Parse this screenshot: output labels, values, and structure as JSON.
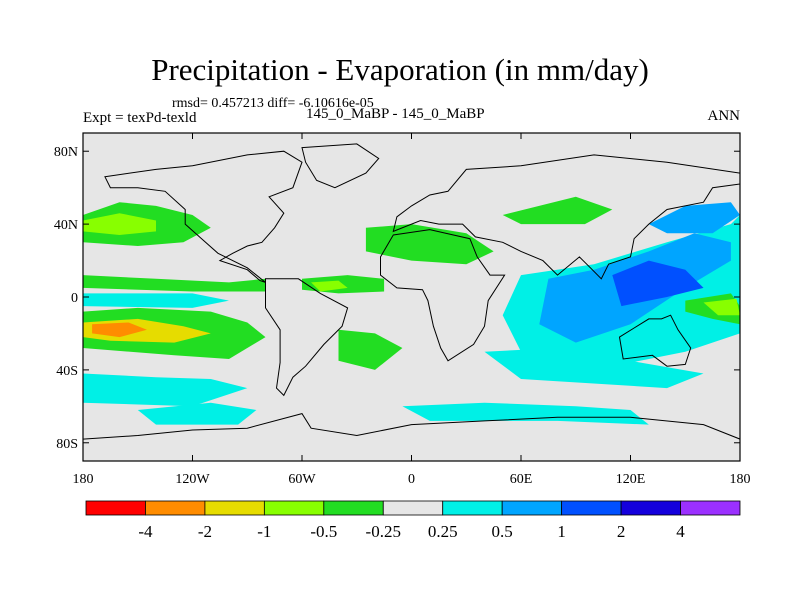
{
  "figure": {
    "title": "Precipitation - Evaporation (in mm/day)",
    "stats": "rmsd= 0.457213 diff= -6.10616e-05",
    "left_label": "Expt = texPd-texld",
    "center_label": "145_0_MaBP - 145_0_MaBP",
    "right_label": "ANN"
  },
  "chart_data": {
    "type": "heatmap",
    "projection": "cylindrical-equidistant",
    "title": "Precipitation - Evaporation (in mm/day)",
    "lon_range": [
      -180,
      180
    ],
    "lat_range": [
      -90,
      90
    ],
    "x_ticks": [
      {
        "value": -180,
        "label": "180"
      },
      {
        "value": -120,
        "label": "120W"
      },
      {
        "value": -60,
        "label": "60W"
      },
      {
        "value": 0,
        "label": "0"
      },
      {
        "value": 60,
        "label": "60E"
      },
      {
        "value": 120,
        "label": "120E"
      },
      {
        "value": 180,
        "label": "180"
      }
    ],
    "y_ticks": [
      {
        "value": 80,
        "label": "80N"
      },
      {
        "value": 40,
        "label": "40N"
      },
      {
        "value": 0,
        "label": "0"
      },
      {
        "value": -40,
        "label": "40S"
      },
      {
        "value": -80,
        "label": "80S"
      }
    ],
    "colorbar": {
      "colors": [
        "#ff0000",
        "#ff8c00",
        "#e6dc00",
        "#88ff00",
        "#22dd22",
        "#e6e6e6",
        "#00f0e6",
        "#00a5ff",
        "#0050ff",
        "#1400dc",
        "#9b30ff"
      ],
      "labels": [
        "-4",
        "-2",
        "-1",
        "-0.5",
        "-0.25",
        "0.25",
        "0.5",
        "1",
        "2",
        "4"
      ]
    },
    "map_colors": {
      "background": "#e6e6e6",
      "outline": "#000000"
    },
    "regions": [
      {
        "label": "north pacific band",
        "cls": 4,
        "lonlat": [
          [
            -180,
            45
          ],
          [
            -160,
            52
          ],
          [
            -140,
            50
          ],
          [
            -120,
            45
          ],
          [
            -110,
            38
          ],
          [
            -125,
            30
          ],
          [
            -150,
            28
          ],
          [
            -180,
            30
          ]
        ]
      },
      {
        "label": "north pacific core",
        "cls": 3,
        "lonlat": [
          [
            -180,
            42
          ],
          [
            -160,
            46
          ],
          [
            -140,
            42
          ],
          [
            -140,
            36
          ],
          [
            -160,
            34
          ],
          [
            -180,
            36
          ]
        ]
      },
      {
        "label": "itcz pacific",
        "cls": 4,
        "lonlat": [
          [
            -180,
            12
          ],
          [
            -140,
            10
          ],
          [
            -100,
            8
          ],
          [
            -80,
            10
          ],
          [
            -80,
            3
          ],
          [
            -120,
            3
          ],
          [
            -180,
            5
          ]
        ]
      },
      {
        "label": "equatorial pacific dry",
        "cls": 6,
        "lonlat": [
          [
            -180,
            2
          ],
          [
            -120,
            2
          ],
          [
            -100,
            -2
          ],
          [
            -120,
            -6
          ],
          [
            -180,
            -5
          ]
        ]
      },
      {
        "label": "south pacific band",
        "cls": 4,
        "lonlat": [
          [
            -180,
            -8
          ],
          [
            -150,
            -6
          ],
          [
            -110,
            -8
          ],
          [
            -90,
            -14
          ],
          [
            -80,
            -22
          ],
          [
            -100,
            -34
          ],
          [
            -130,
            -32
          ],
          [
            -180,
            -28
          ]
        ]
      },
      {
        "label": "south pacific yellow",
        "cls": 2,
        "lonlat": [
          [
            -180,
            -14
          ],
          [
            -150,
            -12
          ],
          [
            -125,
            -16
          ],
          [
            -110,
            -20
          ],
          [
            -130,
            -25
          ],
          [
            -165,
            -24
          ],
          [
            -180,
            -22
          ]
        ]
      },
      {
        "label": "south pacific orange",
        "cls": 1,
        "lonlat": [
          [
            -175,
            -15
          ],
          [
            -155,
            -14
          ],
          [
            -145,
            -18
          ],
          [
            -160,
            -22
          ],
          [
            -175,
            -20
          ]
        ]
      },
      {
        "label": "south pacific wet",
        "cls": 6,
        "lonlat": [
          [
            -180,
            -42
          ],
          [
            -140,
            -44
          ],
          [
            -110,
            -45
          ],
          [
            -90,
            -50
          ],
          [
            -120,
            -60
          ],
          [
            -180,
            -58
          ]
        ]
      },
      {
        "label": "southern ocean wet",
        "cls": 6,
        "lonlat": [
          [
            -150,
            -62
          ],
          [
            -110,
            -58
          ],
          [
            -85,
            -62
          ],
          [
            -95,
            -70
          ],
          [
            -140,
            -70
          ]
        ]
      },
      {
        "label": "southern ocean wet east",
        "cls": 6,
        "lonlat": [
          [
            -5,
            -60
          ],
          [
            40,
            -58
          ],
          [
            90,
            -60
          ],
          [
            120,
            -62
          ],
          [
            130,
            -70
          ],
          [
            80,
            -68
          ],
          [
            10,
            -68
          ]
        ]
      },
      {
        "label": "south atlantic dry",
        "cls": 4,
        "lonlat": [
          [
            -40,
            -18
          ],
          [
            -20,
            -20
          ],
          [
            -5,
            -28
          ],
          [
            -20,
            -40
          ],
          [
            -40,
            -35
          ]
        ]
      },
      {
        "label": "atlantic itcz",
        "cls": 4,
        "lonlat": [
          [
            -60,
            10
          ],
          [
            -35,
            12
          ],
          [
            -15,
            10
          ],
          [
            -15,
            3
          ],
          [
            -40,
            2
          ],
          [
            -60,
            4
          ]
        ]
      },
      {
        "label": "atlantic yellow",
        "cls": 3,
        "lonlat": [
          [
            -55,
            8
          ],
          [
            -40,
            9
          ],
          [
            -35,
            5
          ],
          [
            -50,
            3
          ]
        ]
      },
      {
        "label": "africa dry",
        "cls": 4,
        "lonlat": [
          [
            -25,
            38
          ],
          [
            0,
            40
          ],
          [
            30,
            35
          ],
          [
            45,
            25
          ],
          [
            30,
            18
          ],
          [
            0,
            20
          ],
          [
            -25,
            25
          ]
        ]
      },
      {
        "label": "asia dry",
        "cls": 4,
        "lonlat": [
          [
            50,
            45
          ],
          [
            90,
            55
          ],
          [
            110,
            48
          ],
          [
            95,
            40
          ],
          [
            60,
            40
          ]
        ]
      },
      {
        "label": "indian ocean wet",
        "cls": 6,
        "lonlat": [
          [
            60,
            12
          ],
          [
            100,
            18
          ],
          [
            140,
            30
          ],
          [
            175,
            40
          ],
          [
            180,
            45
          ],
          [
            180,
            -20
          ],
          [
            150,
            -30
          ],
          [
            100,
            -40
          ],
          [
            60,
            -30
          ],
          [
            50,
            -10
          ]
        ]
      },
      {
        "label": "indo-pacific blue",
        "cls": 7,
        "lonlat": [
          [
            75,
            10
          ],
          [
            100,
            15
          ],
          [
            130,
            25
          ],
          [
            155,
            35
          ],
          [
            175,
            30
          ],
          [
            175,
            20
          ],
          [
            150,
            5
          ],
          [
            120,
            -15
          ],
          [
            90,
            -25
          ],
          [
            70,
            -15
          ]
        ]
      },
      {
        "label": "west pacific core",
        "cls": 8,
        "lonlat": [
          [
            110,
            12
          ],
          [
            130,
            20
          ],
          [
            150,
            15
          ],
          [
            160,
            5
          ],
          [
            140,
            0
          ],
          [
            115,
            -5
          ]
        ]
      },
      {
        "label": "north west pacific",
        "cls": 7,
        "lonlat": [
          [
            130,
            40
          ],
          [
            150,
            50
          ],
          [
            175,
            52
          ],
          [
            180,
            45
          ],
          [
            165,
            35
          ],
          [
            140,
            35
          ]
        ]
      },
      {
        "label": "west pacific dry",
        "cls": 4,
        "lonlat": [
          [
            150,
            -2
          ],
          [
            175,
            2
          ],
          [
            180,
            -5
          ],
          [
            180,
            -15
          ],
          [
            165,
            -12
          ],
          [
            150,
            -8
          ]
        ]
      },
      {
        "label": "west pacific yellow",
        "cls": 3,
        "lonlat": [
          [
            160,
            -3
          ],
          [
            178,
            -1
          ],
          [
            180,
            -10
          ],
          [
            168,
            -10
          ]
        ]
      },
      {
        "label": "south indian ocean",
        "cls": 6,
        "lonlat": [
          [
            40,
            -30
          ],
          [
            80,
            -28
          ],
          [
            120,
            -35
          ],
          [
            160,
            -42
          ],
          [
            140,
            -50
          ],
          [
            60,
            -45
          ]
        ]
      }
    ],
    "continents": [
      {
        "name": "north-america",
        "lonlat": [
          [
            -168,
            66
          ],
          [
            -140,
            70
          ],
          [
            -120,
            72
          ],
          [
            -90,
            78
          ],
          [
            -70,
            80
          ],
          [
            -60,
            74
          ],
          [
            -65,
            60
          ],
          [
            -78,
            55
          ],
          [
            -70,
            46
          ],
          [
            -75,
            38
          ],
          [
            -82,
            30
          ],
          [
            -90,
            28
          ],
          [
            -98,
            24
          ],
          [
            -105,
            20
          ],
          [
            -90,
            15
          ],
          [
            -83,
            9
          ],
          [
            -80,
            8
          ],
          [
            -90,
            16
          ],
          [
            -106,
            24
          ],
          [
            -115,
            32
          ],
          [
            -124,
            40
          ],
          [
            -124,
            48
          ],
          [
            -135,
            58
          ],
          [
            -150,
            60
          ],
          [
            -165,
            60
          ]
        ]
      },
      {
        "name": "greenland",
        "lonlat": [
          [
            -60,
            82
          ],
          [
            -30,
            84
          ],
          [
            -18,
            76
          ],
          [
            -25,
            68
          ],
          [
            -42,
            60
          ],
          [
            -52,
            64
          ],
          [
            -58,
            74
          ]
        ]
      },
      {
        "name": "south-america",
        "lonlat": [
          [
            -80,
            10
          ],
          [
            -62,
            10
          ],
          [
            -50,
            2
          ],
          [
            -35,
            -6
          ],
          [
            -38,
            -16
          ],
          [
            -48,
            -26
          ],
          [
            -58,
            -38
          ],
          [
            -65,
            -44
          ],
          [
            -70,
            -54
          ],
          [
            -74,
            -50
          ],
          [
            -72,
            -36
          ],
          [
            -72,
            -18
          ],
          [
            -80,
            -6
          ]
        ]
      },
      {
        "name": "eurasia",
        "lonlat": [
          [
            -10,
            36
          ],
          [
            -8,
            44
          ],
          [
            0,
            50
          ],
          [
            10,
            56
          ],
          [
            20,
            58
          ],
          [
            30,
            70
          ],
          [
            60,
            72
          ],
          [
            100,
            78
          ],
          [
            140,
            74
          ],
          [
            180,
            68
          ],
          [
            180,
            62
          ],
          [
            165,
            60
          ],
          [
            160,
            52
          ],
          [
            140,
            48
          ],
          [
            130,
            40
          ],
          [
            122,
            32
          ],
          [
            120,
            22
          ],
          [
            108,
            18
          ],
          [
            104,
            10
          ],
          [
            98,
            16
          ],
          [
            92,
            22
          ],
          [
            80,
            12
          ],
          [
            72,
            20
          ],
          [
            60,
            25
          ],
          [
            50,
            30
          ],
          [
            35,
            33
          ],
          [
            28,
            40
          ],
          [
            15,
            40
          ],
          [
            5,
            42
          ]
        ]
      },
      {
        "name": "africa",
        "lonlat": [
          [
            -17,
            22
          ],
          [
            -10,
            34
          ],
          [
            10,
            37
          ],
          [
            32,
            32
          ],
          [
            36,
            22
          ],
          [
            43,
            12
          ],
          [
            51,
            12
          ],
          [
            42,
            -2
          ],
          [
            40,
            -16
          ],
          [
            34,
            -26
          ],
          [
            20,
            -35
          ],
          [
            16,
            -28
          ],
          [
            12,
            -16
          ],
          [
            9,
            -2
          ],
          [
            6,
            4
          ],
          [
            -8,
            5
          ],
          [
            -17,
            12
          ]
        ]
      },
      {
        "name": "australia",
        "lonlat": [
          [
            114,
            -22
          ],
          [
            122,
            -17
          ],
          [
            130,
            -12
          ],
          [
            137,
            -12
          ],
          [
            142,
            -10
          ],
          [
            146,
            -18
          ],
          [
            153,
            -28
          ],
          [
            150,
            -37
          ],
          [
            140,
            -38
          ],
          [
            132,
            -32
          ],
          [
            116,
            -34
          ]
        ]
      },
      {
        "name": "antarctica",
        "lonlat": [
          [
            -180,
            -78
          ],
          [
            -150,
            -76
          ],
          [
            -120,
            -73
          ],
          [
            -90,
            -72
          ],
          [
            -60,
            -64
          ],
          [
            -55,
            -72
          ],
          [
            -30,
            -76
          ],
          [
            0,
            -70
          ],
          [
            40,
            -68
          ],
          [
            80,
            -66
          ],
          [
            120,
            -66
          ],
          [
            160,
            -70
          ],
          [
            180,
            -78
          ],
          [
            180,
            -90
          ],
          [
            -180,
            -90
          ]
        ]
      }
    ]
  }
}
